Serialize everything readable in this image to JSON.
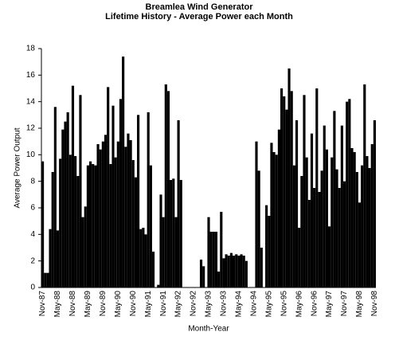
{
  "chart_data": {
    "type": "bar",
    "title": "Breamlea Wind Generator",
    "subtitle": "Lifetime History - Average Power each Month",
    "x_label": "Month-Year",
    "y_label": "Average Power Output",
    "color": "#000000",
    "ylim": [
      0,
      18
    ],
    "yticks": [
      0,
      2,
      4,
      6,
      8,
      10,
      12,
      14,
      16,
      18
    ],
    "grid": false,
    "categories": [
      "Nov-87",
      null,
      null,
      null,
      null,
      null,
      "May-88",
      null,
      null,
      null,
      null,
      null,
      "Nov-88",
      null,
      null,
      null,
      null,
      null,
      "May-89",
      null,
      null,
      null,
      null,
      null,
      "Nov-89",
      null,
      null,
      null,
      null,
      null,
      "May-90",
      null,
      null,
      null,
      null,
      null,
      "Nov-90",
      null,
      null,
      null,
      null,
      null,
      "May-91",
      null,
      null,
      null,
      null,
      null,
      "Nov-91",
      null,
      null,
      null,
      null,
      null,
      "May-92",
      null,
      null,
      null,
      null,
      null,
      "Nov-92",
      null,
      null,
      null,
      null,
      null,
      "May-93",
      null,
      null,
      null,
      null,
      null,
      "Nov-93",
      null,
      null,
      null,
      null,
      null,
      "May-94",
      null,
      null,
      null,
      null,
      null,
      "Nov-94",
      null,
      null,
      null,
      null,
      null,
      "May-95",
      null,
      null,
      null,
      null,
      null,
      "Nov-95",
      null,
      null,
      null,
      null,
      null,
      "May-96",
      null,
      null,
      null,
      null,
      null,
      "Nov-96",
      null,
      null,
      null,
      null,
      null,
      "May-97",
      null,
      null,
      null,
      null,
      null,
      "Nov-97",
      null,
      null,
      null,
      null,
      null,
      "May-98",
      null,
      null,
      null,
      null,
      null,
      "Nov-98"
    ],
    "values": [
      9.5,
      1.1,
      1.1,
      4.4,
      8.7,
      13.6,
      4.3,
      9.7,
      11.9,
      12.5,
      13.2,
      10.0,
      15.2,
      9.9,
      8.4,
      14.5,
      5.3,
      6.1,
      9.2,
      9.5,
      9.3,
      9.2,
      10.8,
      10.4,
      11.0,
      11.5,
      15.1,
      9.3,
      13.7,
      9.8,
      11.0,
      14.2,
      17.4,
      10.6,
      11.6,
      11.1,
      9.6,
      8.3,
      13.0,
      4.4,
      4.5,
      4.0,
      13.2,
      9.2,
      2.7,
      0,
      0.2,
      7.0,
      5.3,
      15.3,
      14.8,
      8.1,
      8.2,
      5.3,
      12.6,
      8.1,
      0,
      0,
      0,
      0,
      0,
      0,
      0,
      2.1,
      1.6,
      0,
      5.3,
      4.2,
      4.2,
      4.2,
      1.2,
      5.7,
      2.2,
      2.5,
      2.4,
      2.6,
      2.4,
      2.5,
      2.4,
      2.5,
      2.4,
      2.0,
      0,
      0,
      0,
      11.0,
      8.8,
      3.0,
      0,
      6.2,
      5.4,
      10.9,
      10.2,
      10.0,
      11.9,
      15.0,
      14.4,
      13.4,
      16.5,
      14.8,
      9.2,
      12.6,
      4.5,
      8.4,
      14.5,
      9.8,
      6.6,
      11.6,
      7.5,
      15.0,
      7.2,
      8.8,
      12.2,
      10.4,
      4.6,
      9.8,
      13.3,
      8.9,
      7.5,
      12.2,
      8.0,
      14.0,
      14.2,
      10.5,
      10.2,
      8.7,
      6.4,
      9.2,
      15.3,
      9.9,
      9.0,
      10.8,
      12.6
    ]
  }
}
